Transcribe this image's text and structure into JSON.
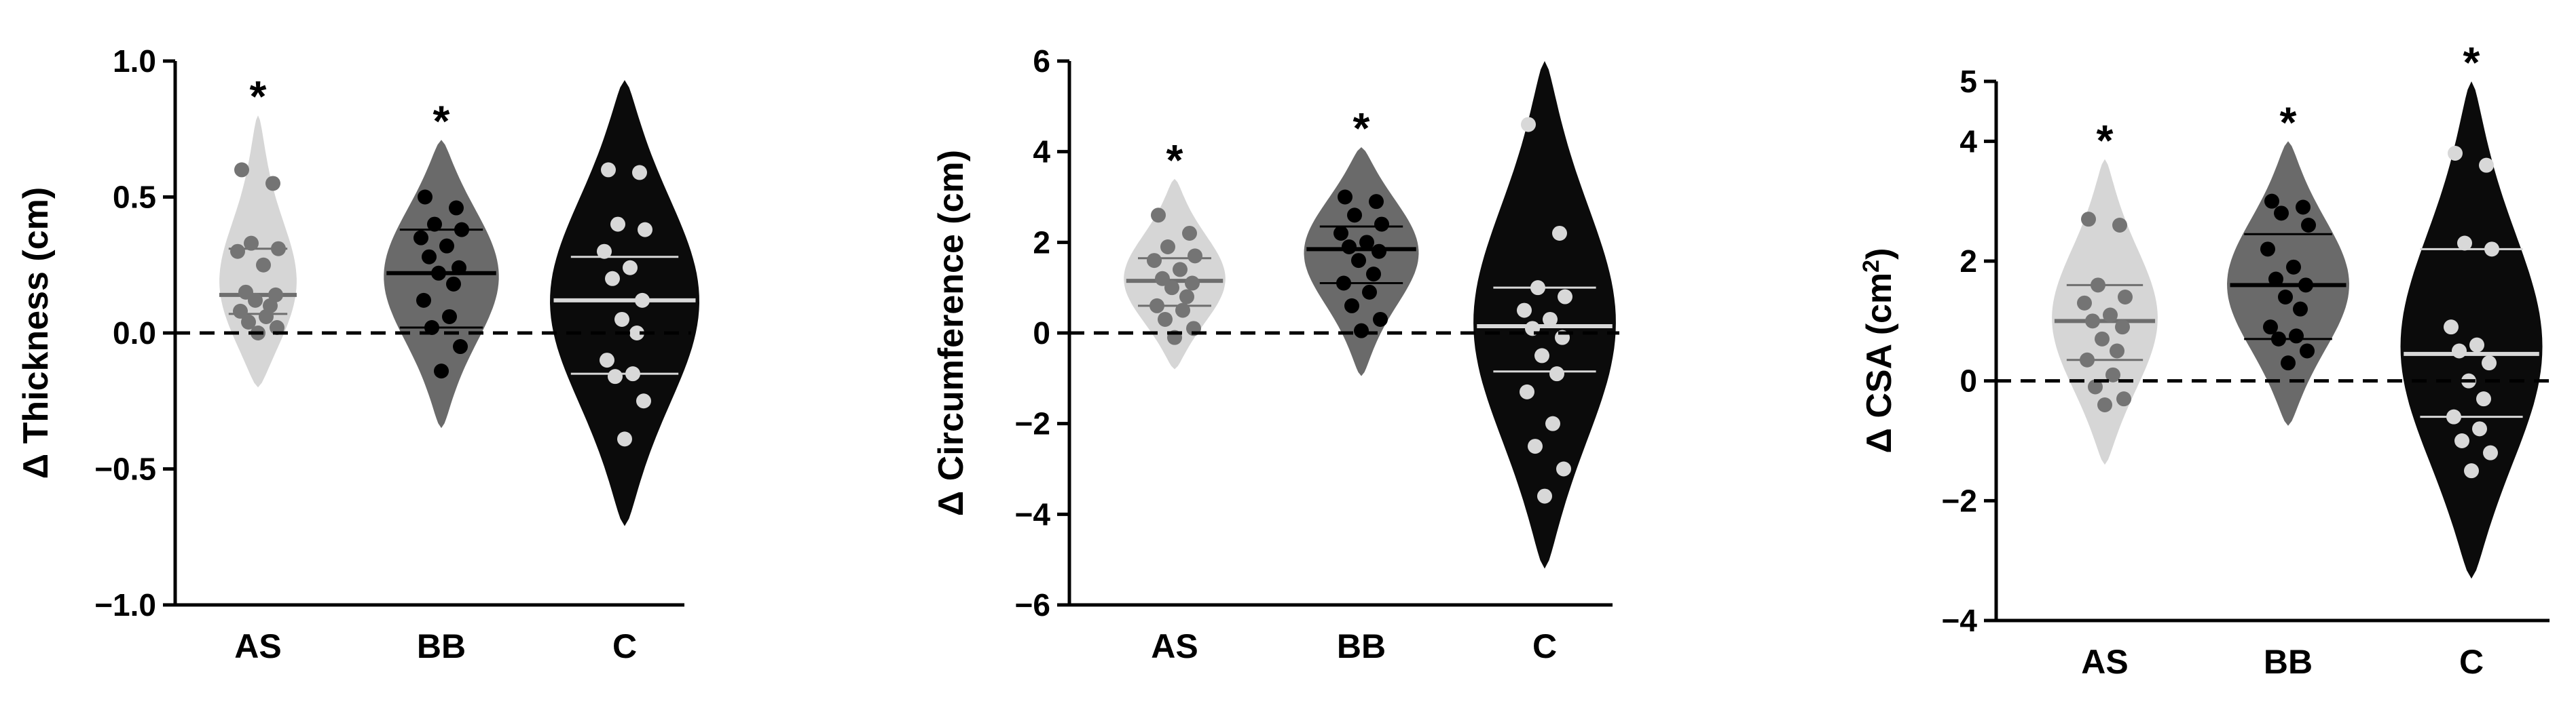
{
  "colors": {
    "AS": "#d6d6d6",
    "BB": "#6a6a6a",
    "C": "#0b0b0b",
    "AS_points": "#747474",
    "BB_points": "#000000",
    "C_points": "#d8d8d8",
    "AS_lines": "#6e6e6e",
    "BB_lines": "#000000",
    "C_lines": "#d8d8d8"
  },
  "chart_data": [
    {
      "type": "violin",
      "title": "",
      "xlabel": "",
      "ylabel": "Δ Thickness (cm)",
      "ylim": [
        -1.0,
        1.0
      ],
      "ticks": [
        -1.0,
        -0.5,
        0.0,
        0.5,
        1.0
      ],
      "tick_labels": [
        "−1.0",
        "−0.5",
        "0.0",
        "0.5",
        "1.0"
      ],
      "reference_line": 0,
      "categories": [
        "AS",
        "BB",
        "C"
      ],
      "significance": [
        "*",
        "*",
        ""
      ],
      "series": [
        {
          "category": "AS",
          "range": [
            -0.2,
            0.8
          ],
          "median": 0.14,
          "q1": 0.07,
          "q3": 0.31,
          "points": [
            0.6,
            0.55,
            0.33,
            0.31,
            0.3,
            0.25,
            0.15,
            0.14,
            0.12,
            0.1,
            0.08,
            0.06,
            0.04,
            0.02,
            0.0
          ]
        },
        {
          "category": "BB",
          "range": [
            -0.35,
            0.71
          ],
          "median": 0.22,
          "q1": 0.02,
          "q3": 0.38,
          "points": [
            0.5,
            0.46,
            0.4,
            0.38,
            0.35,
            0.32,
            0.28,
            0.24,
            0.22,
            0.18,
            0.12,
            0.06,
            0.02,
            -0.05,
            -0.14
          ]
        },
        {
          "category": "C",
          "range": [
            -0.71,
            0.93
          ],
          "median": 0.12,
          "q1": -0.15,
          "q3": 0.28,
          "points": [
            0.6,
            0.59,
            0.4,
            0.38,
            0.3,
            0.24,
            0.2,
            0.12,
            0.05,
            0.0,
            -0.1,
            -0.15,
            -0.16,
            -0.25,
            -0.39
          ]
        }
      ]
    },
    {
      "type": "violin",
      "title": "",
      "xlabel": "",
      "ylabel": "Δ Circumference (cm)",
      "ylim": [
        -6,
        6
      ],
      "ticks": [
        -6,
        -4,
        -2,
        0,
        2,
        4,
        6
      ],
      "tick_labels": [
        "−6",
        "−4",
        "−2",
        "0",
        "2",
        "4",
        "6"
      ],
      "reference_line": 0,
      "categories": [
        "AS",
        "BB",
        "C"
      ],
      "significance": [
        "*",
        "*",
        ""
      ],
      "series": [
        {
          "category": "AS",
          "range": [
            -0.8,
            3.4
          ],
          "median": 1.15,
          "q1": 0.6,
          "q3": 1.65,
          "points": [
            2.6,
            2.2,
            1.9,
            1.7,
            1.6,
            1.4,
            1.2,
            1.1,
            1.0,
            0.8,
            0.6,
            0.5,
            0.3,
            0.1,
            -0.1
          ]
        },
        {
          "category": "BB",
          "range": [
            -0.95,
            4.1
          ],
          "median": 1.85,
          "q1": 1.1,
          "q3": 2.35,
          "points": [
            3.0,
            2.9,
            2.6,
            2.4,
            2.2,
            2.0,
            1.9,
            1.8,
            1.6,
            1.3,
            1.1,
            0.9,
            0.6,
            0.3,
            0.05
          ]
        },
        {
          "category": "C",
          "range": [
            -5.2,
            6.0
          ],
          "median": 0.15,
          "q1": -0.85,
          "q3": 1.0,
          "points": [
            4.6,
            2.2,
            1.0,
            0.8,
            0.5,
            0.3,
            0.1,
            -0.1,
            -0.5,
            -0.9,
            -1.3,
            -2.0,
            -2.5,
            -3.0,
            -3.6
          ]
        }
      ]
    },
    {
      "type": "violin",
      "title": "",
      "xlabel": "",
      "ylabel": "Δ CSA (cm",
      "ylabel_superscript": "2",
      "ylabel_suffix": ")",
      "ylim": [
        -4,
        5
      ],
      "ticks": [
        -4,
        -2,
        0,
        2,
        4,
        5
      ],
      "tick_labels": [
        "−4",
        "−2",
        "0",
        "2",
        "4",
        "5"
      ],
      "reference_line": 0,
      "categories": [
        "AS",
        "BB",
        "C"
      ],
      "significance": [
        "*",
        "*",
        "*"
      ],
      "series": [
        {
          "category": "AS",
          "range": [
            -1.4,
            3.7
          ],
          "median": 1.0,
          "q1": 0.35,
          "q3": 1.6,
          "points": [
            2.7,
            2.6,
            1.6,
            1.4,
            1.3,
            1.1,
            1.0,
            0.9,
            0.7,
            0.5,
            0.35,
            0.1,
            -0.1,
            -0.3,
            -0.4
          ]
        },
        {
          "category": "BB",
          "range": [
            -0.75,
            4.0
          ],
          "median": 1.6,
          "q1": 0.7,
          "q3": 2.45,
          "points": [
            3.0,
            2.9,
            2.8,
            2.6,
            2.2,
            1.9,
            1.7,
            1.6,
            1.4,
            1.2,
            0.9,
            0.75,
            0.7,
            0.5,
            0.3
          ]
        },
        {
          "category": "C",
          "range": [
            -3.3,
            5.0
          ],
          "median": 0.45,
          "q1": -0.6,
          "q3": 2.2,
          "points": [
            3.8,
            3.6,
            2.3,
            2.2,
            0.9,
            0.6,
            0.5,
            0.3,
            0.0,
            -0.3,
            -0.6,
            -0.8,
            -1.0,
            -1.2,
            -1.5
          ]
        }
      ]
    }
  ]
}
